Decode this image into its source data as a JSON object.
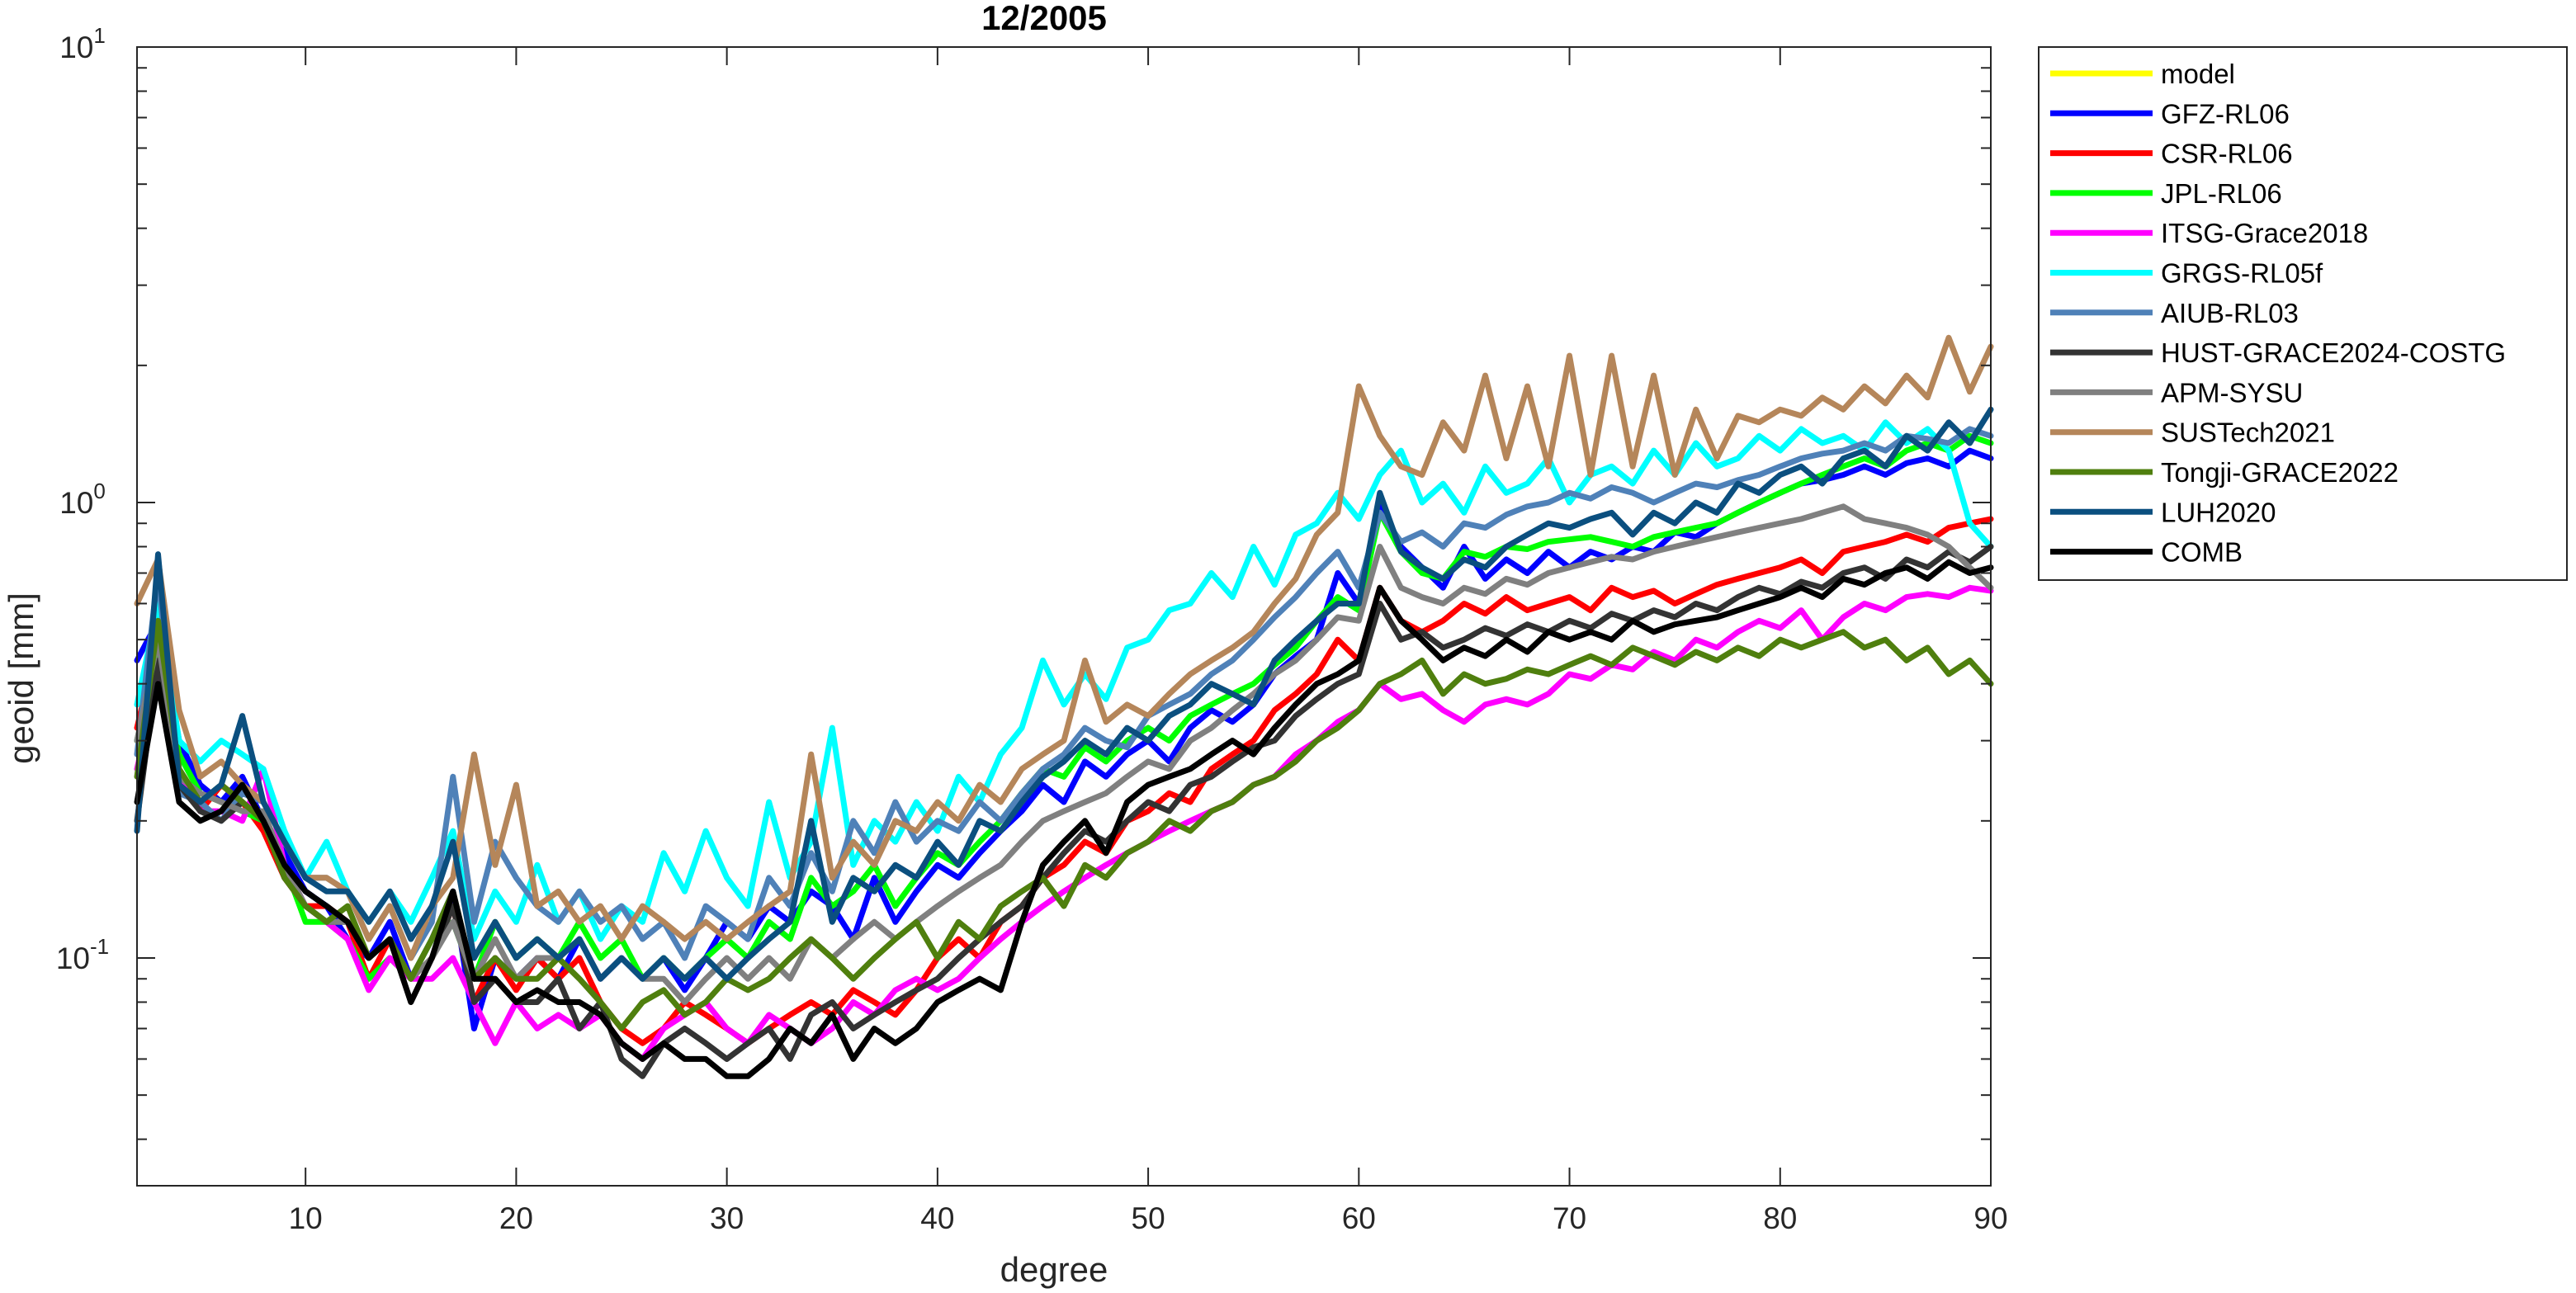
{
  "chart_data": {
    "type": "line",
    "title": "12/2005",
    "xlabel": "degree",
    "ylabel": "geoid [mm]",
    "xlim": [
      2,
      90
    ],
    "ylim": [
      0.03162,
      10
    ],
    "yscale": "log",
    "grid": false,
    "legend_position": "outside-right",
    "x_ticks": [
      "10",
      "20",
      "30",
      "40",
      "50",
      "60",
      "70",
      "80",
      "90"
    ],
    "y_ticks": [
      {
        "base": "10",
        "exp": "-1"
      },
      {
        "base": "10",
        "exp": "0"
      },
      {
        "base": "10",
        "exp": "1"
      }
    ],
    "x_start": 2,
    "series": [
      {
        "name": "model",
        "color": "#ffff00",
        "values": []
      },
      {
        "name": "GFZ-RL06",
        "color": "#0000ff",
        "values": [
          0.45,
          0.55,
          0.3,
          0.24,
          0.22,
          0.25,
          0.2,
          0.17,
          0.14,
          0.13,
          0.11,
          0.1,
          0.12,
          0.09,
          0.11,
          0.14,
          0.07,
          0.1,
          0.09,
          0.1,
          0.09,
          0.11,
          0.09,
          0.1,
          0.09,
          0.1,
          0.085,
          0.1,
          0.12,
          0.11,
          0.13,
          0.12,
          0.14,
          0.13,
          0.11,
          0.15,
          0.12,
          0.14,
          0.16,
          0.15,
          0.17,
          0.19,
          0.21,
          0.24,
          0.22,
          0.27,
          0.25,
          0.28,
          0.3,
          0.27,
          0.32,
          0.35,
          0.33,
          0.36,
          0.42,
          0.46,
          0.5,
          0.7,
          0.6,
          1.0,
          0.8,
          0.72,
          0.65,
          0.8,
          0.68,
          0.75,
          0.7,
          0.78,
          0.72,
          0.78,
          0.75,
          0.8,
          0.78,
          0.86,
          0.84,
          0.9,
          0.95,
          1.0,
          1.05,
          1.1,
          1.12,
          1.15,
          1.2,
          1.15,
          1.22,
          1.25,
          1.2,
          1.3,
          1.25
        ]
      },
      {
        "name": "CSR-RL06",
        "color": "#ff0000",
        "values": [
          0.32,
          0.5,
          0.25,
          0.21,
          0.24,
          0.22,
          0.19,
          0.15,
          0.13,
          0.13,
          0.12,
          0.09,
          0.11,
          0.09,
          0.1,
          0.13,
          0.08,
          0.1,
          0.085,
          0.1,
          0.09,
          0.1,
          0.08,
          0.07,
          0.065,
          0.07,
          0.08,
          0.075,
          0.07,
          0.065,
          0.07,
          0.075,
          0.08,
          0.075,
          0.085,
          0.08,
          0.075,
          0.085,
          0.1,
          0.11,
          0.1,
          0.12,
          0.13,
          0.15,
          0.16,
          0.18,
          0.17,
          0.2,
          0.21,
          0.23,
          0.22,
          0.26,
          0.28,
          0.3,
          0.35,
          0.38,
          0.42,
          0.5,
          0.45,
          0.65,
          0.55,
          0.52,
          0.55,
          0.6,
          0.57,
          0.62,
          0.58,
          0.6,
          0.62,
          0.58,
          0.65,
          0.62,
          0.64,
          0.6,
          0.63,
          0.66,
          0.68,
          0.7,
          0.72,
          0.75,
          0.7,
          0.78,
          0.8,
          0.82,
          0.85,
          0.82,
          0.88,
          0.9,
          0.92
        ]
      },
      {
        "name": "JPL-RL06",
        "color": "#00ff00",
        "values": [
          0.3,
          0.48,
          0.28,
          0.23,
          0.22,
          0.21,
          0.2,
          0.16,
          0.12,
          0.12,
          0.11,
          0.09,
          0.1,
          0.09,
          0.11,
          0.12,
          0.09,
          0.12,
          0.1,
          0.11,
          0.1,
          0.12,
          0.1,
          0.11,
          0.09,
          0.1,
          0.09,
          0.1,
          0.11,
          0.1,
          0.12,
          0.11,
          0.15,
          0.13,
          0.14,
          0.16,
          0.13,
          0.15,
          0.17,
          0.16,
          0.18,
          0.2,
          0.23,
          0.26,
          0.25,
          0.29,
          0.27,
          0.3,
          0.32,
          0.3,
          0.34,
          0.36,
          0.38,
          0.4,
          0.44,
          0.48,
          0.55,
          0.62,
          0.58,
          0.95,
          0.78,
          0.7,
          0.68,
          0.78,
          0.76,
          0.8,
          0.79,
          0.82,
          0.83,
          0.84,
          0.82,
          0.8,
          0.84,
          0.86,
          0.88,
          0.9,
          0.95,
          1.0,
          1.05,
          1.1,
          1.15,
          1.2,
          1.25,
          1.2,
          1.3,
          1.35,
          1.3,
          1.4,
          1.35
        ]
      },
      {
        "name": "ITSG-Grace2018",
        "color": "#ff00ff",
        "values": [
          0.26,
          0.42,
          0.25,
          0.21,
          0.21,
          0.2,
          0.26,
          0.16,
          0.13,
          0.12,
          0.11,
          0.085,
          0.1,
          0.09,
          0.09,
          0.1,
          0.08,
          0.065,
          0.08,
          0.07,
          0.075,
          0.07,
          0.075,
          0.065,
          0.06,
          0.07,
          0.075,
          0.08,
          0.07,
          0.065,
          0.075,
          0.07,
          0.065,
          0.07,
          0.08,
          0.075,
          0.085,
          0.09,
          0.085,
          0.09,
          0.1,
          0.11,
          0.12,
          0.13,
          0.14,
          0.15,
          0.16,
          0.17,
          0.18,
          0.19,
          0.2,
          0.21,
          0.22,
          0.24,
          0.25,
          0.28,
          0.3,
          0.33,
          0.35,
          0.4,
          0.37,
          0.38,
          0.35,
          0.33,
          0.36,
          0.37,
          0.36,
          0.38,
          0.42,
          0.41,
          0.44,
          0.43,
          0.47,
          0.45,
          0.5,
          0.48,
          0.52,
          0.55,
          0.53,
          0.58,
          0.5,
          0.56,
          0.6,
          0.58,
          0.62,
          0.63,
          0.62,
          0.65,
          0.64
        ]
      },
      {
        "name": "GRGS-RL05f",
        "color": "#00ffff",
        "values": [
          0.36,
          0.6,
          0.3,
          0.27,
          0.3,
          0.28,
          0.26,
          0.19,
          0.15,
          0.18,
          0.14,
          0.12,
          0.14,
          0.12,
          0.15,
          0.19,
          0.11,
          0.14,
          0.12,
          0.16,
          0.12,
          0.14,
          0.11,
          0.13,
          0.12,
          0.17,
          0.14,
          0.19,
          0.15,
          0.13,
          0.22,
          0.15,
          0.18,
          0.32,
          0.16,
          0.2,
          0.18,
          0.22,
          0.19,
          0.25,
          0.22,
          0.28,
          0.32,
          0.45,
          0.36,
          0.42,
          0.37,
          0.48,
          0.5,
          0.58,
          0.6,
          0.7,
          0.62,
          0.8,
          0.66,
          0.85,
          0.9,
          1.05,
          0.92,
          1.15,
          1.3,
          1.0,
          1.1,
          0.95,
          1.2,
          1.05,
          1.1,
          1.25,
          1.0,
          1.15,
          1.2,
          1.1,
          1.3,
          1.15,
          1.35,
          1.2,
          1.25,
          1.4,
          1.3,
          1.45,
          1.35,
          1.4,
          1.3,
          1.5,
          1.35,
          1.45,
          1.3,
          0.9,
          0.8
        ]
      },
      {
        "name": "AIUB-RL03",
        "color": "#4f81b8",
        "values": [
          0.28,
          0.7,
          0.23,
          0.22,
          0.2,
          0.23,
          0.22,
          0.18,
          0.15,
          0.15,
          0.14,
          0.11,
          0.13,
          0.1,
          0.12,
          0.25,
          0.12,
          0.18,
          0.15,
          0.13,
          0.12,
          0.14,
          0.12,
          0.13,
          0.11,
          0.12,
          0.1,
          0.13,
          0.12,
          0.11,
          0.15,
          0.13,
          0.17,
          0.14,
          0.2,
          0.17,
          0.22,
          0.18,
          0.2,
          0.19,
          0.22,
          0.2,
          0.23,
          0.26,
          0.28,
          0.32,
          0.3,
          0.29,
          0.34,
          0.36,
          0.38,
          0.42,
          0.45,
          0.5,
          0.56,
          0.62,
          0.7,
          0.78,
          0.65,
          0.95,
          0.82,
          0.86,
          0.8,
          0.9,
          0.88,
          0.94,
          0.98,
          1.0,
          1.05,
          1.02,
          1.08,
          1.05,
          1.0,
          1.05,
          1.1,
          1.08,
          1.12,
          1.15,
          1.2,
          1.25,
          1.28,
          1.3,
          1.35,
          1.3,
          1.4,
          1.38,
          1.35,
          1.45,
          1.4
        ]
      },
      {
        "name": "HUST-GRACE2024-COSTG",
        "color": "#333333",
        "values": [
          0.2,
          0.45,
          0.24,
          0.21,
          0.2,
          0.22,
          0.2,
          0.15,
          0.13,
          0.12,
          0.12,
          0.1,
          0.11,
          0.09,
          0.1,
          0.13,
          0.08,
          0.09,
          0.08,
          0.08,
          0.09,
          0.07,
          0.08,
          0.06,
          0.055,
          0.065,
          0.07,
          0.065,
          0.06,
          0.065,
          0.07,
          0.06,
          0.075,
          0.08,
          0.07,
          0.075,
          0.08,
          0.085,
          0.09,
          0.1,
          0.11,
          0.12,
          0.13,
          0.15,
          0.17,
          0.19,
          0.18,
          0.2,
          0.22,
          0.21,
          0.24,
          0.25,
          0.27,
          0.29,
          0.3,
          0.34,
          0.37,
          0.4,
          0.42,
          0.6,
          0.5,
          0.52,
          0.48,
          0.5,
          0.53,
          0.51,
          0.54,
          0.52,
          0.55,
          0.53,
          0.57,
          0.55,
          0.58,
          0.56,
          0.6,
          0.58,
          0.62,
          0.65,
          0.63,
          0.67,
          0.65,
          0.7,
          0.72,
          0.68,
          0.75,
          0.72,
          0.78,
          0.74,
          0.8
        ]
      },
      {
        "name": "APM-SYSU",
        "color": "#808080",
        "values": [
          0.3,
          0.5,
          0.25,
          0.23,
          0.22,
          0.21,
          0.21,
          0.16,
          0.13,
          0.12,
          0.12,
          0.1,
          0.11,
          0.09,
          0.1,
          0.12,
          0.09,
          0.11,
          0.09,
          0.1,
          0.1,
          0.11,
          0.09,
          0.1,
          0.09,
          0.09,
          0.08,
          0.09,
          0.1,
          0.09,
          0.1,
          0.09,
          0.11,
          0.1,
          0.11,
          0.12,
          0.11,
          0.12,
          0.13,
          0.14,
          0.15,
          0.16,
          0.18,
          0.2,
          0.21,
          0.22,
          0.23,
          0.25,
          0.27,
          0.26,
          0.3,
          0.32,
          0.35,
          0.38,
          0.42,
          0.45,
          0.5,
          0.56,
          0.55,
          0.8,
          0.65,
          0.62,
          0.6,
          0.65,
          0.63,
          0.68,
          0.66,
          0.7,
          0.72,
          0.74,
          0.76,
          0.75,
          0.78,
          0.8,
          0.82,
          0.84,
          0.86,
          0.88,
          0.9,
          0.92,
          0.95,
          0.98,
          0.92,
          0.9,
          0.88,
          0.85,
          0.8,
          0.72,
          0.65
        ]
      },
      {
        "name": "SUSTech2021",
        "color": "#b5865a",
        "values": [
          0.6,
          0.75,
          0.35,
          0.25,
          0.27,
          0.24,
          0.22,
          0.18,
          0.15,
          0.15,
          0.14,
          0.11,
          0.13,
          0.1,
          0.13,
          0.15,
          0.28,
          0.16,
          0.24,
          0.13,
          0.14,
          0.12,
          0.13,
          0.11,
          0.13,
          0.12,
          0.11,
          0.12,
          0.11,
          0.12,
          0.13,
          0.14,
          0.28,
          0.15,
          0.18,
          0.16,
          0.2,
          0.19,
          0.22,
          0.2,
          0.24,
          0.22,
          0.26,
          0.28,
          0.3,
          0.45,
          0.33,
          0.36,
          0.34,
          0.38,
          0.42,
          0.45,
          0.48,
          0.52,
          0.6,
          0.68,
          0.85,
          0.95,
          1.8,
          1.4,
          1.2,
          1.15,
          1.5,
          1.3,
          1.9,
          1.25,
          1.8,
          1.2,
          2.1,
          1.15,
          2.1,
          1.2,
          1.9,
          1.15,
          1.6,
          1.25,
          1.55,
          1.5,
          1.6,
          1.55,
          1.7,
          1.6,
          1.8,
          1.65,
          1.9,
          1.7,
          2.3,
          1.75,
          2.2
        ]
      },
      {
        "name": "Tongji-GRACE2022",
        "color": "#4f7f0e",
        "values": [
          0.25,
          0.55,
          0.26,
          0.22,
          0.24,
          0.22,
          0.2,
          0.15,
          0.13,
          0.12,
          0.13,
          0.1,
          0.11,
          0.09,
          0.11,
          0.14,
          0.09,
          0.1,
          0.09,
          0.09,
          0.1,
          0.09,
          0.08,
          0.07,
          0.08,
          0.085,
          0.075,
          0.08,
          0.09,
          0.085,
          0.09,
          0.1,
          0.11,
          0.1,
          0.09,
          0.1,
          0.11,
          0.12,
          0.1,
          0.12,
          0.11,
          0.13,
          0.14,
          0.15,
          0.13,
          0.16,
          0.15,
          0.17,
          0.18,
          0.2,
          0.19,
          0.21,
          0.22,
          0.24,
          0.25,
          0.27,
          0.3,
          0.32,
          0.35,
          0.4,
          0.42,
          0.45,
          0.38,
          0.42,
          0.4,
          0.41,
          0.43,
          0.42,
          0.44,
          0.46,
          0.44,
          0.48,
          0.46,
          0.44,
          0.47,
          0.45,
          0.48,
          0.46,
          0.5,
          0.48,
          0.5,
          0.52,
          0.48,
          0.5,
          0.45,
          0.48,
          0.42,
          0.45,
          0.4
        ]
      },
      {
        "name": "LUH2020",
        "color": "#0b4f7f",
        "values": [
          0.19,
          0.77,
          0.24,
          0.22,
          0.24,
          0.34,
          0.22,
          0.18,
          0.15,
          0.14,
          0.14,
          0.12,
          0.14,
          0.11,
          0.13,
          0.18,
          0.1,
          0.12,
          0.1,
          0.11,
          0.1,
          0.11,
          0.09,
          0.1,
          0.09,
          0.1,
          0.09,
          0.1,
          0.09,
          0.1,
          0.11,
          0.12,
          0.2,
          0.12,
          0.15,
          0.14,
          0.16,
          0.15,
          0.18,
          0.16,
          0.2,
          0.19,
          0.22,
          0.25,
          0.27,
          0.3,
          0.28,
          0.32,
          0.3,
          0.34,
          0.36,
          0.4,
          0.38,
          0.36,
          0.45,
          0.5,
          0.55,
          0.6,
          0.6,
          1.05,
          0.78,
          0.72,
          0.68,
          0.75,
          0.72,
          0.8,
          0.85,
          0.9,
          0.88,
          0.92,
          0.95,
          0.85,
          0.95,
          0.9,
          1.0,
          0.95,
          1.1,
          1.05,
          1.15,
          1.2,
          1.1,
          1.25,
          1.3,
          1.2,
          1.4,
          1.3,
          1.5,
          1.35,
          1.6
        ]
      },
      {
        "name": "COMB",
        "color": "#000000",
        "values": [
          0.22,
          0.4,
          0.22,
          0.2,
          0.21,
          0.24,
          0.2,
          0.16,
          0.14,
          0.13,
          0.12,
          0.1,
          0.11,
          0.08,
          0.1,
          0.14,
          0.09,
          0.09,
          0.08,
          0.085,
          0.08,
          0.08,
          0.075,
          0.065,
          0.06,
          0.065,
          0.06,
          0.06,
          0.055,
          0.055,
          0.06,
          0.07,
          0.065,
          0.075,
          0.06,
          0.07,
          0.065,
          0.07,
          0.08,
          0.085,
          0.09,
          0.085,
          0.12,
          0.16,
          0.18,
          0.2,
          0.17,
          0.22,
          0.24,
          0.25,
          0.26,
          0.28,
          0.3,
          0.28,
          0.32,
          0.36,
          0.4,
          0.42,
          0.45,
          0.65,
          0.55,
          0.5,
          0.45,
          0.48,
          0.46,
          0.5,
          0.47,
          0.52,
          0.5,
          0.52,
          0.5,
          0.55,
          0.52,
          0.54,
          0.55,
          0.56,
          0.58,
          0.6,
          0.62,
          0.65,
          0.62,
          0.68,
          0.66,
          0.7,
          0.72,
          0.68,
          0.74,
          0.7,
          0.72
        ]
      }
    ]
  }
}
